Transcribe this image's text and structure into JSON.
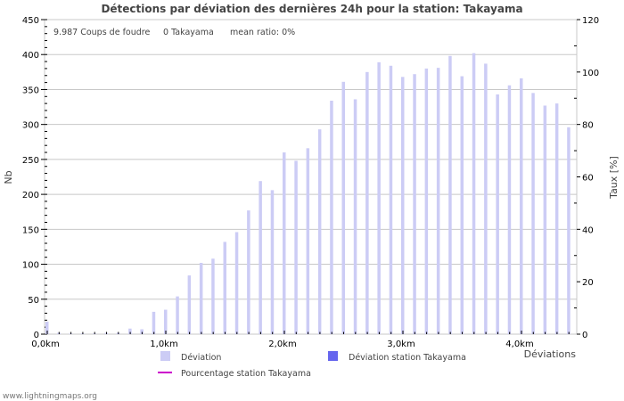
{
  "title": "Détections par déviation des dernières 24h pour la station: Takayama",
  "stats": {
    "strikes": "9.987",
    "strikes_label": "Coups de foudre",
    "station_count": "0",
    "station_label": "Takayama",
    "mean_ratio": "mean ratio: 0%"
  },
  "axes": {
    "y_left_label": "Nb",
    "y_right_label": "Taux [%]",
    "x_label": "Déviations"
  },
  "legend": {
    "deviation": "Déviation",
    "deviation_station": "Déviation station Takayama",
    "percentage_station": "Pourcentage station Takayama"
  },
  "footer": "www.lightningmaps.org",
  "colors": {
    "deviation": "#ccccf5",
    "deviation_station": "#6666ee",
    "percentage_line": "#cc00cc",
    "grid": "#c8c8c8"
  },
  "chart_data": {
    "type": "bar",
    "title": "Détections par déviation des dernières 24h pour la station: Takayama",
    "xlabel": "Déviations",
    "ylabel": "Nb",
    "y2label": "Taux [%]",
    "ylim": [
      0,
      450
    ],
    "y2lim": [
      0,
      120
    ],
    "y_ticks": [
      0,
      50,
      100,
      150,
      200,
      250,
      300,
      350,
      400,
      450
    ],
    "y2_ticks": [
      0,
      20,
      40,
      60,
      80,
      100,
      120
    ],
    "x_tick_labels": [
      "0,0km",
      "1,0km",
      "2,0km",
      "3,0km",
      "4,0km"
    ],
    "grid": true,
    "legend_position": "bottom",
    "categories": [
      "0.0",
      "0.1",
      "0.2",
      "0.3",
      "0.4",
      "0.5",
      "0.6",
      "0.7",
      "0.8",
      "0.9",
      "1.0",
      "1.1",
      "1.2",
      "1.3",
      "1.4",
      "1.5",
      "1.6",
      "1.7",
      "1.8",
      "1.9",
      "2.0",
      "2.1",
      "2.2",
      "2.3",
      "2.4",
      "2.5",
      "2.6",
      "2.7",
      "2.8",
      "2.9",
      "3.0",
      "3.1",
      "3.2",
      "3.3",
      "3.4",
      "3.5",
      "3.6",
      "3.7",
      "3.8",
      "3.9",
      "4.0",
      "4.1",
      "4.2",
      "4.3",
      "4.4"
    ],
    "series": [
      {
        "name": "Déviation",
        "values": [
          18,
          2,
          1,
          1,
          1,
          2,
          2,
          8,
          7,
          32,
          35,
          54,
          84,
          102,
          108,
          132,
          146,
          177,
          219,
          206,
          260,
          248,
          266,
          293,
          334,
          361,
          336,
          375,
          389,
          384,
          368,
          372,
          380,
          381,
          398,
          369,
          402,
          387,
          343,
          356,
          366,
          345,
          327,
          330,
          296
        ]
      },
      {
        "name": "Déviation station Takayama",
        "values": [
          0,
          0,
          0,
          0,
          0,
          0,
          0,
          0,
          0,
          0,
          0,
          0,
          0,
          0,
          0,
          0,
          0,
          0,
          0,
          0,
          0,
          0,
          0,
          0,
          0,
          0,
          0,
          0,
          0,
          0,
          0,
          0,
          0,
          0,
          0,
          0,
          0,
          0,
          0,
          0,
          0,
          0,
          0,
          0,
          0
        ]
      },
      {
        "name": "Pourcentage station Takayama",
        "values": [
          0,
          0,
          0,
          0,
          0,
          0,
          0,
          0,
          0,
          0,
          0,
          0,
          0,
          0,
          0,
          0,
          0,
          0,
          0,
          0,
          0,
          0,
          0,
          0,
          0,
          0,
          0,
          0,
          0,
          0,
          0,
          0,
          0,
          0,
          0,
          0,
          0,
          0,
          0,
          0,
          0,
          0,
          0,
          0,
          0
        ]
      }
    ]
  }
}
